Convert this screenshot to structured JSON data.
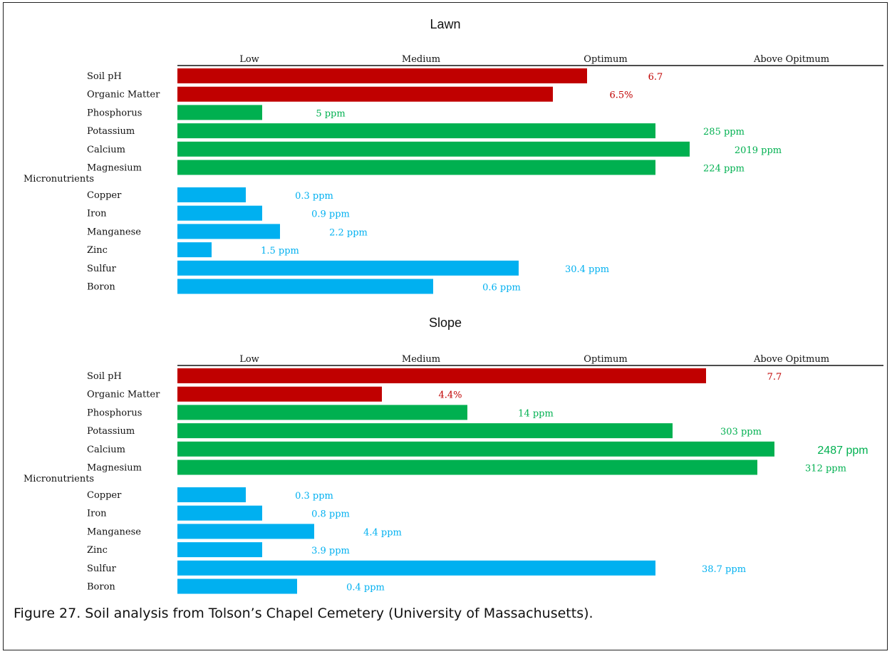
{
  "caption": "Figure 27. Soil analysis from Tolson’s Chapel Cemetery (University of Massachusetts).",
  "colors": {
    "red": "#c00000",
    "green": "#00b050",
    "blue": "#00b0f0",
    "text": "#111111"
  },
  "chart_data": [
    {
      "type": "bar",
      "orientation": "horizontal",
      "title": "Lawn",
      "levels": [
        "Low",
        "Medium",
        "Optimum",
        "Above Opitmum"
      ],
      "group_label": "Micronutrients",
      "grid": false,
      "xlim_fraction": [
        0,
        1
      ],
      "bars": [
        {
          "label": "Soil pH",
          "level_fraction": 0.63,
          "value_label": "6.7",
          "color": "red"
        },
        {
          "label": "Organic Matter",
          "level_fraction": 0.578,
          "value_label": "6.5%",
          "color": "red"
        },
        {
          "label": "Phosphorus",
          "level_fraction": 0.131,
          "value_label": "5 ppm",
          "color": "green"
        },
        {
          "label": "Potassium",
          "level_fraction": 0.736,
          "value_label": "285 ppm",
          "color": "green"
        },
        {
          "label": "Calcium",
          "level_fraction": 0.788,
          "value_label": "2019 ppm",
          "color": "green"
        },
        {
          "label": "Magnesium",
          "level_fraction": 0.736,
          "value_label": "224 ppm",
          "color": "green"
        },
        {
          "label": "Copper",
          "level_fraction": 0.105,
          "value_label": "0.3 ppm",
          "color": "blue",
          "micronutrient": true
        },
        {
          "label": "Iron",
          "level_fraction": 0.131,
          "value_label": "0.9 ppm",
          "color": "blue",
          "micronutrient": true
        },
        {
          "label": "Manganese",
          "level_fraction": 0.158,
          "value_label": "2.2 ppm",
          "color": "blue",
          "micronutrient": true
        },
        {
          "label": "Zinc",
          "level_fraction": 0.053,
          "value_label": "1.5 ppm",
          "color": "blue",
          "micronutrient": true
        },
        {
          "label": "Sulfur",
          "level_fraction": 0.525,
          "value_label": "30.4 ppm",
          "color": "blue",
          "micronutrient": true
        },
        {
          "label": "Boron",
          "level_fraction": 0.394,
          "value_label": "0.6 ppm",
          "color": "blue",
          "micronutrient": true
        }
      ]
    },
    {
      "type": "bar",
      "orientation": "horizontal",
      "title": "Slope",
      "levels": [
        "Low",
        "Medium",
        "Optimum",
        "Above Opitmum"
      ],
      "group_label": "Micronutrients",
      "grid": false,
      "xlim_fraction": [
        0,
        1
      ],
      "bars": [
        {
          "label": "Soil pH",
          "level_fraction": 0.814,
          "value_label": "7.7",
          "color": "red"
        },
        {
          "label": "Organic Matter",
          "level_fraction": 0.315,
          "value_label": "4.4%",
          "color": "red"
        },
        {
          "label": "Phosphorus",
          "level_fraction": 0.446,
          "value_label": "14 ppm",
          "color": "green"
        },
        {
          "label": "Potassium",
          "level_fraction": 0.762,
          "value_label": "303 ppm",
          "color": "green"
        },
        {
          "label": "Calcium",
          "level_fraction": 0.919,
          "value_label": "2487 ppm",
          "color": "green",
          "large_label": true
        },
        {
          "label": "Magnesium",
          "level_fraction": 0.893,
          "value_label": "312 ppm",
          "color": "green"
        },
        {
          "label": "Copper",
          "level_fraction": 0.105,
          "value_label": "0.3 ppm",
          "color": "blue",
          "micronutrient": true
        },
        {
          "label": "Iron",
          "level_fraction": 0.131,
          "value_label": "0.8 ppm",
          "color": "blue",
          "micronutrient": true
        },
        {
          "label": "Manganese",
          "level_fraction": 0.21,
          "value_label": "4.4 ppm",
          "color": "blue",
          "micronutrient": true
        },
        {
          "label": "Zinc",
          "level_fraction": 0.131,
          "value_label": "3.9 ppm",
          "color": "blue",
          "micronutrient": true
        },
        {
          "label": "Sulfur",
          "level_fraction": 0.736,
          "value_label": "38.7 ppm",
          "color": "blue",
          "micronutrient": true
        },
        {
          "label": "Boron",
          "level_fraction": 0.184,
          "value_label": "0.4 ppm",
          "color": "blue",
          "micronutrient": true
        }
      ]
    }
  ]
}
